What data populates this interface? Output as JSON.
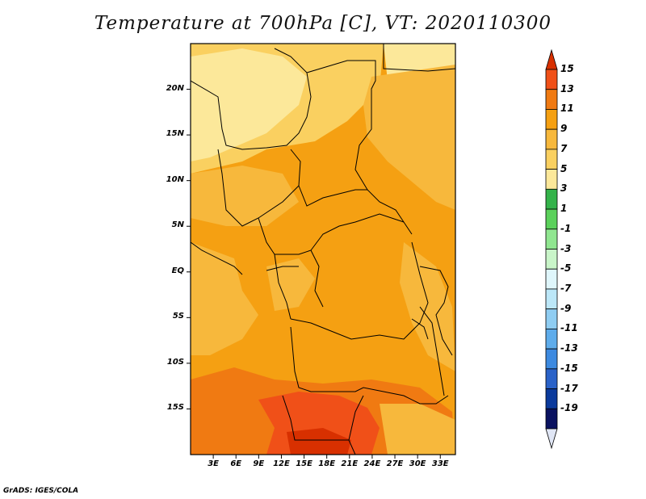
{
  "title": "Temperature at 700hPa [C], VT: 2020110300",
  "credit": "GrADS: IGES/COLA",
  "lat_labels": [
    "20N",
    "15N",
    "10N",
    "5N",
    "EQ",
    "5S",
    "10S",
    "15S"
  ],
  "lat_values": [
    20,
    15,
    10,
    5,
    0,
    -5,
    -10,
    -15
  ],
  "lon_labels": [
    "3E",
    "6E",
    "9E",
    "12E",
    "15E",
    "18E",
    "21E",
    "24E",
    "27E",
    "30E",
    "33E"
  ],
  "lon_values": [
    3,
    6,
    9,
    12,
    15,
    18,
    21,
    24,
    27,
    30,
    33
  ],
  "map_extent": {
    "lon": [
      0,
      35
    ],
    "lat": [
      -20,
      25
    ]
  },
  "colorbar": {
    "levels": [
      "15",
      "13",
      "11",
      "9",
      "7",
      "5",
      "3",
      "1",
      "-1",
      "-3",
      "-5",
      "-7",
      "-9",
      "-11",
      "-13",
      "-15",
      "-17",
      "-19"
    ],
    "colors": [
      "#d83000",
      "#f05018",
      "#f07a12",
      "#f5a012",
      "#f7b83c",
      "#fad060",
      "#fce89a",
      "#34b34a",
      "#5bd15b",
      "#90e690",
      "#c9f5c9",
      "#dff6fb",
      "#bce7f8",
      "#8fcdf2",
      "#5eaceb",
      "#3d8ae0",
      "#2a62c8",
      "#0b3a9c",
      "#0a1260",
      "#e0e6f5"
    ]
  },
  "colors": {
    "cold_zone": "#fce89a",
    "mild_zone": "#f7b83c",
    "warm_zone": "#f5a012",
    "hot_zone": "#f07a12",
    "hottest_zone": "#d83000",
    "border": "#000000"
  }
}
